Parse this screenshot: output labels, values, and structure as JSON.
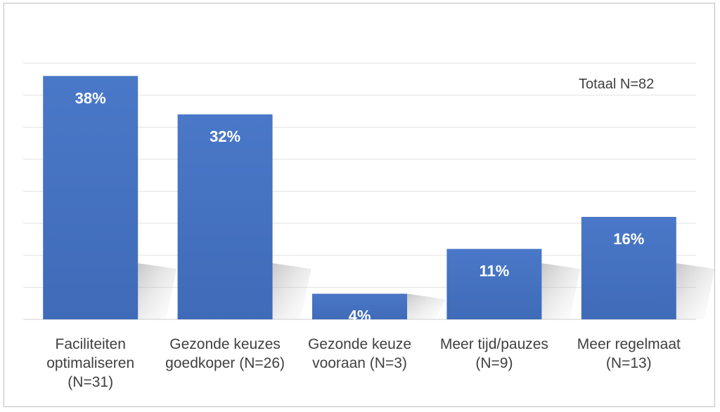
{
  "chart_data": {
    "type": "bar",
    "title": "",
    "xlabel": "",
    "ylabel": "",
    "annotation": "Totaal N=82",
    "categories": [
      [
        "Faciliteiten",
        "optimaliseren",
        "(N=31)"
      ],
      [
        "Gezonde keuzes",
        "goedkoper (N=26)"
      ],
      [
        "Gezonde keuze",
        "vooraan (N=3)"
      ],
      [
        "Meer tijd/pauzes",
        "(N=9)"
      ],
      [
        "Meer regelmaat",
        "(N=13)"
      ]
    ],
    "values": [
      38,
      32,
      4,
      11,
      16
    ],
    "value_labels": [
      "38%",
      "32%",
      "4%",
      "11%",
      "16%"
    ],
    "ylim": [
      0,
      40
    ],
    "grid": true,
    "legend": "none",
    "bar_color": "#4472c4"
  }
}
